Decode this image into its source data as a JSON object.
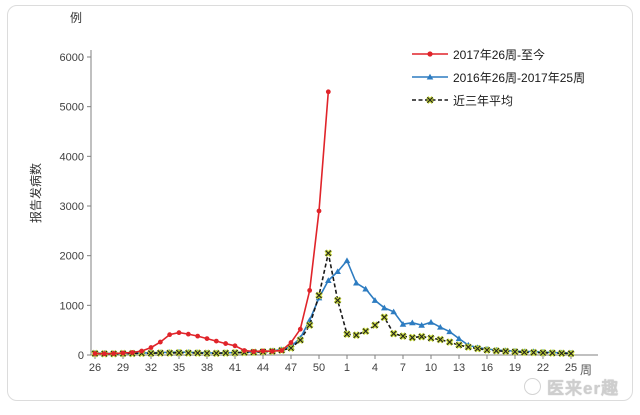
{
  "axis": {
    "unit_label": "例",
    "y_title": "报告发病数",
    "x_title": "周"
  },
  "legend": {
    "position": "top-right",
    "items": [
      {
        "label": "2017年26周-至今"
      },
      {
        "label": "2016年26周-2017年25周"
      },
      {
        "label": "近三年平均"
      }
    ]
  },
  "watermark": {
    "text": "医来er趣"
  },
  "chart_data": {
    "type": "line",
    "title": "",
    "xlabel": "周",
    "ylabel": "报告发病数",
    "y_unit": "例",
    "ylim": [
      0,
      6000
    ],
    "grid": false,
    "legend_position": "top-right",
    "y_ticks": [
      0,
      1000,
      2000,
      3000,
      4000,
      5000,
      6000
    ],
    "y_tick_labels": [
      "0",
      "1000",
      "2000",
      "3000",
      "4000",
      "5000",
      "6000"
    ],
    "x_tick_labels": [
      "26",
      "29",
      "32",
      "35",
      "38",
      "41",
      "44",
      "47",
      "50",
      "1",
      "4",
      "7",
      "10",
      "13",
      "16",
      "19",
      "22",
      "25"
    ],
    "x_tick_step": 3,
    "categories": [
      "26",
      "27",
      "28",
      "29",
      "30",
      "31",
      "32",
      "33",
      "34",
      "35",
      "36",
      "37",
      "38",
      "39",
      "40",
      "41",
      "42",
      "43",
      "44",
      "45",
      "46",
      "47",
      "48",
      "49",
      "50",
      "51",
      "52",
      "1",
      "2",
      "3",
      "4",
      "5",
      "6",
      "7",
      "8",
      "9",
      "10",
      "11",
      "12",
      "13",
      "14",
      "15",
      "16",
      "17",
      "18",
      "19",
      "20",
      "21",
      "22",
      "23",
      "24",
      "25"
    ],
    "series": [
      {
        "id": "2017",
        "name": "2017年26周-至今",
        "color": "#e0242a",
        "marker": "circle",
        "line": "solid",
        "values": [
          30,
          25,
          30,
          40,
          50,
          80,
          150,
          260,
          410,
          450,
          420,
          380,
          330,
          280,
          230,
          185,
          90,
          70,
          80,
          75,
          90,
          250,
          520,
          1300,
          2900,
          5300
        ]
      },
      {
        "id": "2016",
        "name": "2016年26周-2017年25周",
        "color": "#2d7cc1",
        "marker": "triangle",
        "line": "solid",
        "values": [
          40,
          35,
          30,
          30,
          35,
          40,
          45,
          50,
          55,
          60,
          55,
          50,
          45,
          40,
          45,
          50,
          55,
          60,
          70,
          85,
          110,
          170,
          340,
          700,
          1150,
          1500,
          1680,
          1900,
          1450,
          1330,
          1100,
          950,
          870,
          620,
          650,
          600,
          660,
          560,
          470,
          330,
          200,
          150,
          120,
          100,
          90,
          80,
          70,
          70,
          60,
          50,
          45,
          40
        ]
      },
      {
        "id": "avg3yr",
        "name": "近三年平均",
        "color": "#1a1a1a",
        "marker": "x",
        "marker_color": "#c6d831",
        "line": "dashed",
        "values": [
          30,
          25,
          25,
          30,
          30,
          35,
          35,
          40,
          40,
          45,
          40,
          40,
          35,
          35,
          40,
          45,
          50,
          55,
          65,
          75,
          95,
          140,
          300,
          600,
          1200,
          2050,
          1100,
          420,
          400,
          480,
          600,
          760,
          430,
          380,
          350,
          370,
          340,
          310,
          260,
          200,
          160,
          130,
          100,
          85,
          75,
          65,
          55,
          50,
          45,
          40,
          35,
          30
        ]
      }
    ]
  }
}
